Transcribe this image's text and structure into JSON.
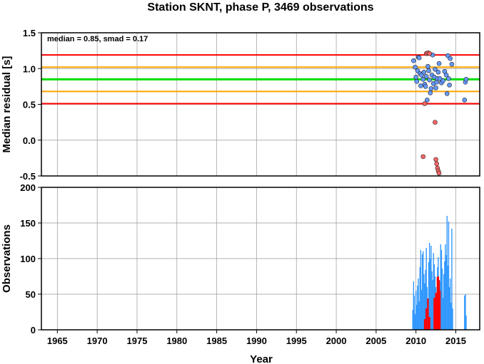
{
  "chart_data": [
    {
      "type": "scatter",
      "title": "Station SKNT, phase P, 3469 observations",
      "ylabel": "Median residual [s]",
      "xlim": [
        1963,
        2018
      ],
      "ylim": [
        -0.5,
        1.5
      ],
      "yticks": [
        "1.5",
        "1.0",
        "0.5",
        "0.0",
        "-0.5"
      ],
      "ytick_values": [
        1.5,
        1.0,
        0.5,
        0.0,
        -0.5
      ],
      "annotation": "median = 0.85, smad = 0.17",
      "grid": true,
      "reference_lines": [
        {
          "y": 1.19,
          "color": "#ff0000"
        },
        {
          "y": 1.02,
          "color": "#ffa500"
        },
        {
          "y": 0.85,
          "color": "#00dd00"
        },
        {
          "y": 0.68,
          "color": "#ffa500"
        },
        {
          "y": 0.51,
          "color": "#ff0000"
        }
      ],
      "series": [
        {
          "color": "#6699ff",
          "points": [
            [
              2009.7,
              1.11
            ],
            [
              2009.9,
              1.02
            ],
            [
              2010.0,
              0.88
            ],
            [
              2010.1,
              0.82
            ],
            [
              2010.2,
              0.97
            ],
            [
              2010.3,
              1.16
            ],
            [
              2010.4,
              1.15
            ],
            [
              2010.5,
              0.93
            ],
            [
              2010.6,
              0.76
            ],
            [
              2010.7,
              0.91
            ],
            [
              2010.9,
              0.85
            ],
            [
              2011.0,
              0.95
            ],
            [
              2011.1,
              0.78
            ],
            [
              2011.2,
              0.75
            ],
            [
              2011.3,
              0.89
            ],
            [
              2011.4,
              0.56
            ],
            [
              2011.5,
              1.03
            ],
            [
              2011.6,
              0.97
            ],
            [
              2011.7,
              0.84
            ],
            [
              2011.8,
              0.66
            ],
            [
              2011.9,
              0.72
            ],
            [
              2012.0,
              0.91
            ],
            [
              2012.1,
              1.19
            ],
            [
              2012.2,
              0.79
            ],
            [
              2012.3,
              0.88
            ],
            [
              2012.4,
              0.99
            ],
            [
              2012.5,
              0.73
            ],
            [
              2012.6,
              0.81
            ],
            [
              2012.7,
              0.86
            ],
            [
              2012.8,
              0.95
            ],
            [
              2012.9,
              1.07
            ],
            [
              2013.0,
              0.86
            ],
            [
              2013.2,
              0.8
            ],
            [
              2013.4,
              0.83
            ],
            [
              2013.6,
              0.96
            ],
            [
              2013.8,
              0.91
            ],
            [
              2013.9,
              0.65
            ],
            [
              2014.0,
              1.18
            ],
            [
              2014.1,
              0.86
            ],
            [
              2014.2,
              0.77
            ],
            [
              2014.3,
              1.14
            ],
            [
              2014.5,
              1.06
            ],
            [
              2016.1,
              0.56
            ],
            [
              2016.2,
              0.81
            ],
            [
              2016.3,
              0.85
            ]
          ]
        },
        {
          "color": "#ff6666",
          "points": [
            [
              2010.9,
              -0.23
            ],
            [
              2011.1,
              0.51
            ],
            [
              2011.3,
              1.21
            ],
            [
              2011.5,
              1.22
            ],
            [
              2011.7,
              1.21
            ],
            [
              2012.4,
              0.25
            ],
            [
              2012.5,
              -0.27
            ],
            [
              2012.6,
              -0.33
            ],
            [
              2012.7,
              -0.39
            ],
            [
              2012.8,
              -0.43
            ],
            [
              2012.9,
              -0.46
            ]
          ]
        }
      ]
    },
    {
      "type": "bar",
      "ylabel": "Observations",
      "xlabel": "Year",
      "xlim": [
        1963,
        2018
      ],
      "ylim": [
        0,
        200
      ],
      "xticks": [
        "1965",
        "1970",
        "1975",
        "1980",
        "1985",
        "1990",
        "1995",
        "2000",
        "2005",
        "2010",
        "2015"
      ],
      "xtick_values": [
        1965,
        1970,
        1975,
        1980,
        1985,
        1990,
        1995,
        2000,
        2005,
        2010,
        2015
      ],
      "yticks": [
        "200",
        "150",
        "100",
        "50",
        "0"
      ],
      "ytick_values": [
        200,
        150,
        100,
        50,
        0
      ],
      "grid": true,
      "series": [
        {
          "color": "#3399ff",
          "bars": [
            [
              2009.6,
              28
            ],
            [
              2009.7,
              68
            ],
            [
              2009.8,
              48
            ],
            [
              2009.9,
              22
            ],
            [
              2010.0,
              55
            ],
            [
              2010.1,
              35
            ],
            [
              2010.2,
              62
            ],
            [
              2010.3,
              72
            ],
            [
              2010.4,
              40
            ],
            [
              2010.5,
              88
            ],
            [
              2010.6,
              112
            ],
            [
              2010.7,
              56
            ],
            [
              2010.8,
              106
            ],
            [
              2010.9,
              110
            ],
            [
              2011.0,
              78
            ],
            [
              2011.1,
              65
            ],
            [
              2011.2,
              84
            ],
            [
              2011.3,
              115
            ],
            [
              2011.4,
              60
            ],
            [
              2011.5,
              30
            ],
            [
              2011.6,
              95
            ],
            [
              2011.7,
              122
            ],
            [
              2011.8,
              100
            ],
            [
              2011.9,
              118
            ],
            [
              2012.0,
              82
            ],
            [
              2012.1,
              70
            ],
            [
              2012.2,
              108
            ],
            [
              2012.3,
              92
            ],
            [
              2012.4,
              75
            ],
            [
              2012.5,
              60
            ],
            [
              2012.6,
              50
            ],
            [
              2012.7,
              88
            ],
            [
              2012.8,
              102
            ],
            [
              2012.9,
              40
            ],
            [
              2013.0,
              68
            ],
            [
              2013.1,
              120
            ],
            [
              2013.2,
              112
            ],
            [
              2013.3,
              86
            ],
            [
              2013.4,
              45
            ],
            [
              2013.5,
              78
            ],
            [
              2013.6,
              96
            ],
            [
              2013.7,
              120
            ],
            [
              2013.8,
              105
            ],
            [
              2013.9,
              160
            ],
            [
              2014.0,
              90
            ],
            [
              2014.1,
              152
            ],
            [
              2014.2,
              60
            ],
            [
              2014.3,
              72
            ],
            [
              2014.4,
              38
            ],
            [
              2014.5,
              142
            ],
            [
              2014.6,
              30
            ],
            [
              2016.1,
              48
            ],
            [
              2016.2,
              50
            ],
            [
              2016.3,
              20
            ]
          ]
        },
        {
          "color": "#ff0000",
          "bars": [
            [
              2011.1,
              15
            ],
            [
              2011.3,
              30
            ],
            [
              2011.5,
              44
            ],
            [
              2011.7,
              18
            ],
            [
              2012.3,
              45
            ],
            [
              2012.4,
              38
            ],
            [
              2012.5,
              52
            ],
            [
              2012.6,
              48
            ],
            [
              2012.7,
              74
            ],
            [
              2012.8,
              75
            ],
            [
              2012.9,
              70
            ],
            [
              2013.0,
              55
            ]
          ]
        }
      ]
    }
  ]
}
